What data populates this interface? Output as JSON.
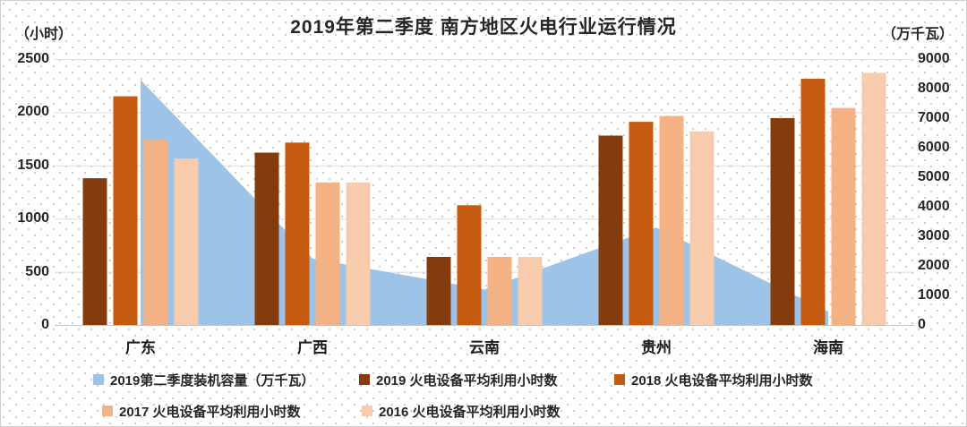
{
  "title": "2019年第二季度  南方地区火电行业运行情况",
  "chart_data": {
    "type": "combo-area-bar",
    "categories": [
      "广东",
      "广西",
      "云南",
      "贵州",
      "海南"
    ],
    "series": [
      {
        "name": "2019第二季度装机容量（万千瓦）",
        "type": "area",
        "axis": "right",
        "color": "#9DC3E6",
        "values": [
          8290,
          2250,
          1200,
          3300,
          450
        ]
      },
      {
        "name": "2019 火电设备平均利用小时数",
        "type": "bar",
        "axis": "left",
        "color": "#843C0C",
        "values": [
          1380,
          1620,
          640,
          1780,
          1945
        ]
      },
      {
        "name": "2018 火电设备平均利用小时数",
        "type": "bar",
        "axis": "left",
        "color": "#C55A11",
        "values": [
          2150,
          1715,
          1125,
          1910,
          2315
        ]
      },
      {
        "name": "2017 火电设备平均利用小时数",
        "type": "bar",
        "axis": "left",
        "color": "#F4B183",
        "values": [
          1740,
          1340,
          640,
          1965,
          2040
        ]
      },
      {
        "name": "2016 火电设备平均利用小时数",
        "type": "bar",
        "axis": "left",
        "color": "#F8CBAD",
        "values": [
          1565,
          1340,
          640,
          1820,
          2370
        ]
      }
    ],
    "left_axis": {
      "unit": "（小时）",
      "min": 0,
      "max": 2500,
      "ticks": [
        2500,
        2000,
        1500,
        1000,
        500,
        0
      ]
    },
    "right_axis": {
      "unit": "（万千瓦）",
      "min": 0,
      "max": 9000,
      "ticks": [
        9000,
        8000,
        7000,
        6000,
        5000,
        4000,
        3000,
        2000,
        1000,
        0
      ]
    },
    "grid": true,
    "legend_position": "bottom",
    "legend_rows": [
      [
        0,
        1,
        2
      ],
      [
        3,
        4
      ]
    ]
  },
  "colors": {
    "text": "#262626",
    "gridline": "#dcdcdc",
    "axis_line": "#c3c3c3",
    "area": "#9DC3E6",
    "bar_2019": "#843C0C",
    "bar_2018": "#C55A11",
    "bar_2017": "#F4B183",
    "bar_2016": "#F8CBAD"
  }
}
